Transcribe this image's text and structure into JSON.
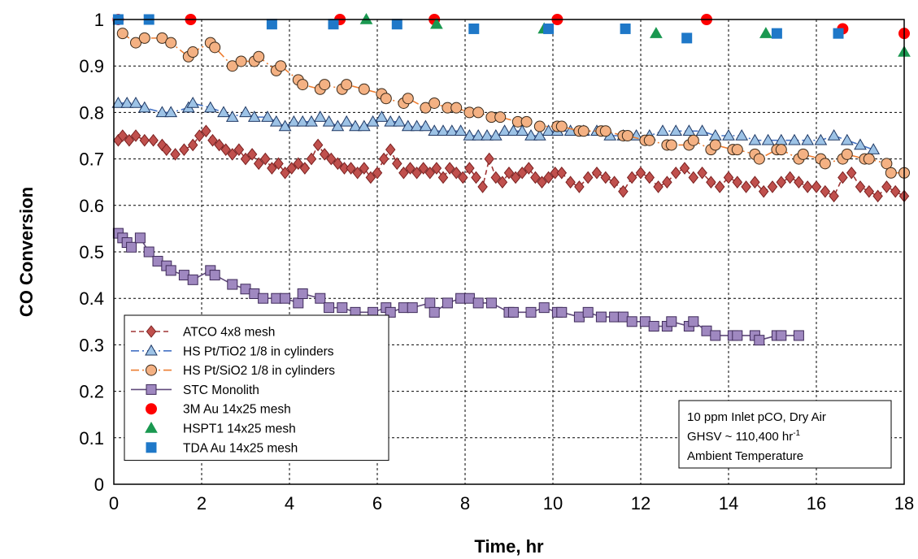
{
  "chart_data": {
    "type": "scatter",
    "title": "",
    "xlabel": "Time, hr",
    "ylabel": "CO Conversion",
    "xlim": [
      0,
      18
    ],
    "ylim": [
      0,
      1
    ],
    "xticks": [
      "0",
      "2",
      "4",
      "6",
      "8",
      "10",
      "12",
      "14",
      "16",
      "18"
    ],
    "yticks": [
      "0",
      "0.1",
      "0.2",
      "0.3",
      "0.4",
      "0.5",
      "0.6",
      "0.7",
      "0.8",
      "0.9",
      "1"
    ],
    "grid": true,
    "legend_position": "bottom-left",
    "annotation": {
      "line1": "10 ppm Inlet pCO, Dry Air",
      "line2_prefix": "GHSV ~ 110,400 hr",
      "line2_sup": "-1",
      "line3": "Ambient Temperature"
    },
    "series": [
      {
        "name": "ATCO 4x8 mesh",
        "marker": "diamond",
        "line": "dash",
        "color": "#c0504d",
        "stroke": "#7a2020",
        "line_color": "#a03535",
        "x": [
          0.1,
          0.2,
          0.35,
          0.5,
          0.7,
          0.9,
          1.1,
          1.2,
          1.4,
          1.6,
          1.8,
          1.95,
          2.1,
          2.25,
          2.4,
          2.55,
          2.7,
          2.85,
          3.0,
          3.15,
          3.3,
          3.45,
          3.6,
          3.75,
          3.9,
          4.05,
          4.2,
          4.35,
          4.5,
          4.65,
          4.8,
          4.95,
          5.1,
          5.25,
          5.4,
          5.55,
          5.7,
          5.85,
          6.0,
          6.15,
          6.3,
          6.45,
          6.6,
          6.75,
          6.9,
          7.05,
          7.2,
          7.35,
          7.5,
          7.65,
          7.8,
          7.95,
          8.1,
          8.25,
          8.4,
          8.55,
          8.7,
          8.85,
          9.0,
          9.15,
          9.3,
          9.45,
          9.6,
          9.75,
          9.9,
          10.05,
          10.2,
          10.4,
          10.6,
          10.8,
          11.0,
          11.2,
          11.4,
          11.6,
          11.8,
          12.0,
          12.2,
          12.4,
          12.6,
          12.8,
          13.0,
          13.2,
          13.4,
          13.6,
          13.8,
          14.0,
          14.2,
          14.4,
          14.6,
          14.8,
          15.0,
          15.2,
          15.4,
          15.6,
          15.8,
          16.0,
          16.2,
          16.4,
          16.6,
          16.8,
          17.0,
          17.2,
          17.4,
          17.6,
          17.8,
          18.0
        ],
        "y": [
          0.74,
          0.75,
          0.74,
          0.75,
          0.74,
          0.74,
          0.73,
          0.72,
          0.71,
          0.72,
          0.73,
          0.75,
          0.76,
          0.74,
          0.73,
          0.72,
          0.71,
          0.72,
          0.7,
          0.71,
          0.69,
          0.7,
          0.68,
          0.69,
          0.67,
          0.68,
          0.69,
          0.68,
          0.7,
          0.73,
          0.71,
          0.7,
          0.69,
          0.68,
          0.68,
          0.67,
          0.68,
          0.66,
          0.67,
          0.7,
          0.72,
          0.69,
          0.67,
          0.68,
          0.67,
          0.68,
          0.67,
          0.68,
          0.66,
          0.68,
          0.67,
          0.66,
          0.68,
          0.66,
          0.64,
          0.7,
          0.66,
          0.65,
          0.67,
          0.66,
          0.67,
          0.68,
          0.66,
          0.65,
          0.66,
          0.67,
          0.67,
          0.65,
          0.64,
          0.66,
          0.67,
          0.66,
          0.65,
          0.63,
          0.66,
          0.67,
          0.66,
          0.64,
          0.65,
          0.67,
          0.68,
          0.66,
          0.67,
          0.65,
          0.64,
          0.66,
          0.65,
          0.64,
          0.65,
          0.63,
          0.64,
          0.65,
          0.66,
          0.65,
          0.64,
          0.64,
          0.63,
          0.62,
          0.66,
          0.67,
          0.64,
          0.63,
          0.62,
          0.64,
          0.63,
          0.62
        ]
      },
      {
        "name": "HS Pt/TiO2 1/8 in cylinders",
        "marker": "triangle",
        "line": "dashdot",
        "color": "#9dc3e6",
        "stroke": "#1f3864",
        "line_color": "#4472c4",
        "x": [
          0.1,
          0.3,
          0.5,
          0.7,
          1.1,
          1.3,
          1.7,
          1.8,
          2.2,
          2.5,
          2.7,
          3.0,
          3.2,
          3.5,
          3.7,
          3.9,
          4.1,
          4.3,
          4.5,
          4.7,
          4.9,
          5.1,
          5.3,
          5.5,
          5.7,
          5.9,
          6.1,
          6.3,
          6.5,
          6.7,
          6.9,
          7.1,
          7.3,
          7.5,
          7.7,
          7.9,
          8.1,
          8.3,
          8.5,
          8.7,
          8.9,
          9.1,
          9.3,
          9.5,
          9.7,
          9.9,
          10.1,
          10.4,
          10.7,
          11.0,
          11.3,
          11.6,
          11.9,
          12.2,
          12.5,
          12.8,
          13.1,
          13.4,
          13.7,
          14.0,
          14.3,
          14.6,
          14.9,
          15.2,
          15.5,
          15.8,
          16.1,
          16.4,
          16.7,
          17.0,
          17.3
        ],
        "y": [
          0.82,
          0.82,
          0.82,
          0.81,
          0.8,
          0.8,
          0.81,
          0.82,
          0.81,
          0.8,
          0.79,
          0.8,
          0.79,
          0.79,
          0.78,
          0.77,
          0.78,
          0.78,
          0.78,
          0.79,
          0.78,
          0.77,
          0.78,
          0.77,
          0.77,
          0.78,
          0.79,
          0.78,
          0.78,
          0.77,
          0.77,
          0.77,
          0.76,
          0.76,
          0.76,
          0.76,
          0.75,
          0.75,
          0.75,
          0.75,
          0.76,
          0.76,
          0.76,
          0.75,
          0.75,
          0.76,
          0.76,
          0.76,
          0.76,
          0.76,
          0.75,
          0.75,
          0.75,
          0.75,
          0.76,
          0.76,
          0.76,
          0.76,
          0.75,
          0.75,
          0.75,
          0.74,
          0.74,
          0.74,
          0.74,
          0.74,
          0.74,
          0.75,
          0.74,
          0.73,
          0.72
        ]
      },
      {
        "name": "HS Pt/SiO2 1/8 in cylinders",
        "marker": "circle",
        "line": "dashdot",
        "color": "#f4b183",
        "stroke": "#3a2a1a",
        "line_color": "#ed7d31",
        "x": [
          0.2,
          0.5,
          0.7,
          1.1,
          1.3,
          1.7,
          1.8,
          2.2,
          2.3,
          2.7,
          2.9,
          3.2,
          3.3,
          3.7,
          3.8,
          4.2,
          4.3,
          4.7,
          4.8,
          5.2,
          5.3,
          5.7,
          6.1,
          6.2,
          6.6,
          6.7,
          7.1,
          7.3,
          7.6,
          7.8,
          8.1,
          8.3,
          8.6,
          8.8,
          9.2,
          9.4,
          9.7,
          10.1,
          10.2,
          10.6,
          10.7,
          11.1,
          11.2,
          11.6,
          11.7,
          12.1,
          12.2,
          12.6,
          12.7,
          13.1,
          13.2,
          13.6,
          13.7,
          14.1,
          14.2,
          14.6,
          14.7,
          15.1,
          15.2,
          15.6,
          15.7,
          16.1,
          16.2,
          16.6,
          16.7,
          17.1,
          17.2,
          17.6,
          17.7,
          18.0
        ],
        "y": [
          0.97,
          0.95,
          0.96,
          0.96,
          0.95,
          0.92,
          0.93,
          0.95,
          0.94,
          0.9,
          0.91,
          0.91,
          0.92,
          0.89,
          0.9,
          0.87,
          0.86,
          0.85,
          0.86,
          0.85,
          0.86,
          0.85,
          0.84,
          0.83,
          0.82,
          0.83,
          0.81,
          0.82,
          0.81,
          0.81,
          0.8,
          0.8,
          0.79,
          0.79,
          0.78,
          0.78,
          0.77,
          0.77,
          0.77,
          0.76,
          0.76,
          0.76,
          0.76,
          0.75,
          0.75,
          0.74,
          0.74,
          0.73,
          0.73,
          0.73,
          0.74,
          0.72,
          0.73,
          0.72,
          0.72,
          0.71,
          0.7,
          0.72,
          0.72,
          0.7,
          0.71,
          0.7,
          0.69,
          0.7,
          0.71,
          0.7,
          0.7,
          0.69,
          0.67,
          0.67
        ]
      },
      {
        "name": "STC Monolith",
        "marker": "square",
        "line": "solid",
        "color": "#9f88c0",
        "stroke": "#3f2b5a",
        "line_color": "#604a7b",
        "x": [
          0.1,
          0.2,
          0.3,
          0.4,
          0.6,
          0.8,
          1.0,
          1.2,
          1.3,
          1.6,
          1.8,
          2.2,
          2.3,
          2.7,
          3.0,
          3.2,
          3.4,
          3.7,
          3.9,
          4.2,
          4.3,
          4.7,
          4.9,
          5.2,
          5.5,
          5.9,
          6.2,
          6.3,
          6.6,
          6.8,
          7.2,
          7.3,
          7.6,
          7.9,
          8.1,
          8.3,
          8.6,
          9.0,
          9.1,
          9.5,
          9.8,
          10.1,
          10.2,
          10.6,
          10.8,
          11.1,
          11.4,
          11.6,
          11.8,
          12.1,
          12.3,
          12.6,
          12.7,
          13.1,
          13.2,
          13.5,
          13.7,
          14.1,
          14.2,
          14.6,
          14.7,
          15.1,
          15.2,
          15.6
        ],
        "y": [
          0.54,
          0.53,
          0.52,
          0.51,
          0.53,
          0.5,
          0.48,
          0.47,
          0.46,
          0.45,
          0.44,
          0.46,
          0.45,
          0.43,
          0.42,
          0.41,
          0.4,
          0.4,
          0.4,
          0.39,
          0.41,
          0.4,
          0.38,
          0.38,
          0.37,
          0.37,
          0.38,
          0.37,
          0.38,
          0.38,
          0.39,
          0.37,
          0.39,
          0.4,
          0.4,
          0.39,
          0.39,
          0.37,
          0.37,
          0.37,
          0.38,
          0.37,
          0.37,
          0.36,
          0.37,
          0.36,
          0.36,
          0.36,
          0.35,
          0.35,
          0.34,
          0.34,
          0.35,
          0.34,
          0.35,
          0.33,
          0.32,
          0.32,
          0.32,
          0.32,
          0.31,
          0.32,
          0.32,
          0.32
        ]
      },
      {
        "name": "3M Au 14x25 mesh",
        "marker": "circle",
        "line": "none",
        "color": "#ff0000",
        "stroke": "#ff0000",
        "line_color": "none",
        "x": [
          0.1,
          1.75,
          5.15,
          7.3,
          10.1,
          13.5,
          16.6,
          18.0
        ],
        "y": [
          1.0,
          1.0,
          1.0,
          1.0,
          1.0,
          1.0,
          0.98,
          0.97
        ]
      },
      {
        "name": "HSPT1 14x25 mesh",
        "marker": "triangle",
        "line": "none",
        "color": "#1a9850",
        "stroke": "#1a9850",
        "line_color": "none",
        "x": [
          5.75,
          7.35,
          9.8,
          12.35,
          14.85,
          18.0
        ],
        "y": [
          1.0,
          0.99,
          0.98,
          0.97,
          0.97,
          0.93
        ]
      },
      {
        "name": "TDA Au 14x25 mesh",
        "marker": "square",
        "line": "none",
        "color": "#1f78c8",
        "stroke": "#1f78c8",
        "line_color": "none",
        "x": [
          0.1,
          0.8,
          3.6,
          5.0,
          6.45,
          8.2,
          9.9,
          11.65,
          13.05,
          15.1,
          16.5
        ],
        "y": [
          1.0,
          1.0,
          0.99,
          0.99,
          0.99,
          0.98,
          0.98,
          0.98,
          0.96,
          0.97,
          0.97
        ]
      }
    ]
  }
}
